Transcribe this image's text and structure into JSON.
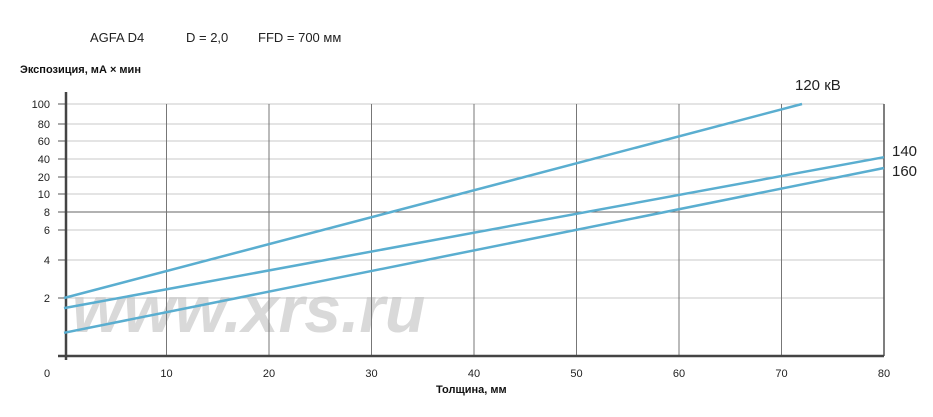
{
  "header": {
    "film": "AGFA D4",
    "density": "D = 2,0",
    "ffd": "FFD = 700 мм"
  },
  "watermark": "www.xrs.ru",
  "chart_data": {
    "type": "line",
    "xlabel": "Толщина, мм",
    "ylabel": "Экспозиция, мА × мин",
    "xlim": [
      0,
      80
    ],
    "x_ticks": [
      "0",
      "10",
      "20",
      "30",
      "40",
      "50",
      "60",
      "70",
      "80"
    ],
    "y_ticks": [
      "100",
      "80",
      "60",
      "40",
      "20",
      "10",
      "8",
      "6",
      "4",
      "2"
    ],
    "y_scale": "non-uniform",
    "grid": true,
    "line_color": "#5aaed0",
    "series": [
      {
        "name": "120 кВ",
        "x": [
          0,
          72
        ],
        "y": [
          2,
          100
        ]
      },
      {
        "name": "140",
        "x": [
          0,
          80
        ],
        "y": [
          1.65,
          42
        ]
      },
      {
        "name": "160",
        "x": [
          0,
          80
        ],
        "y": [
          0.8,
          30
        ]
      }
    ]
  }
}
